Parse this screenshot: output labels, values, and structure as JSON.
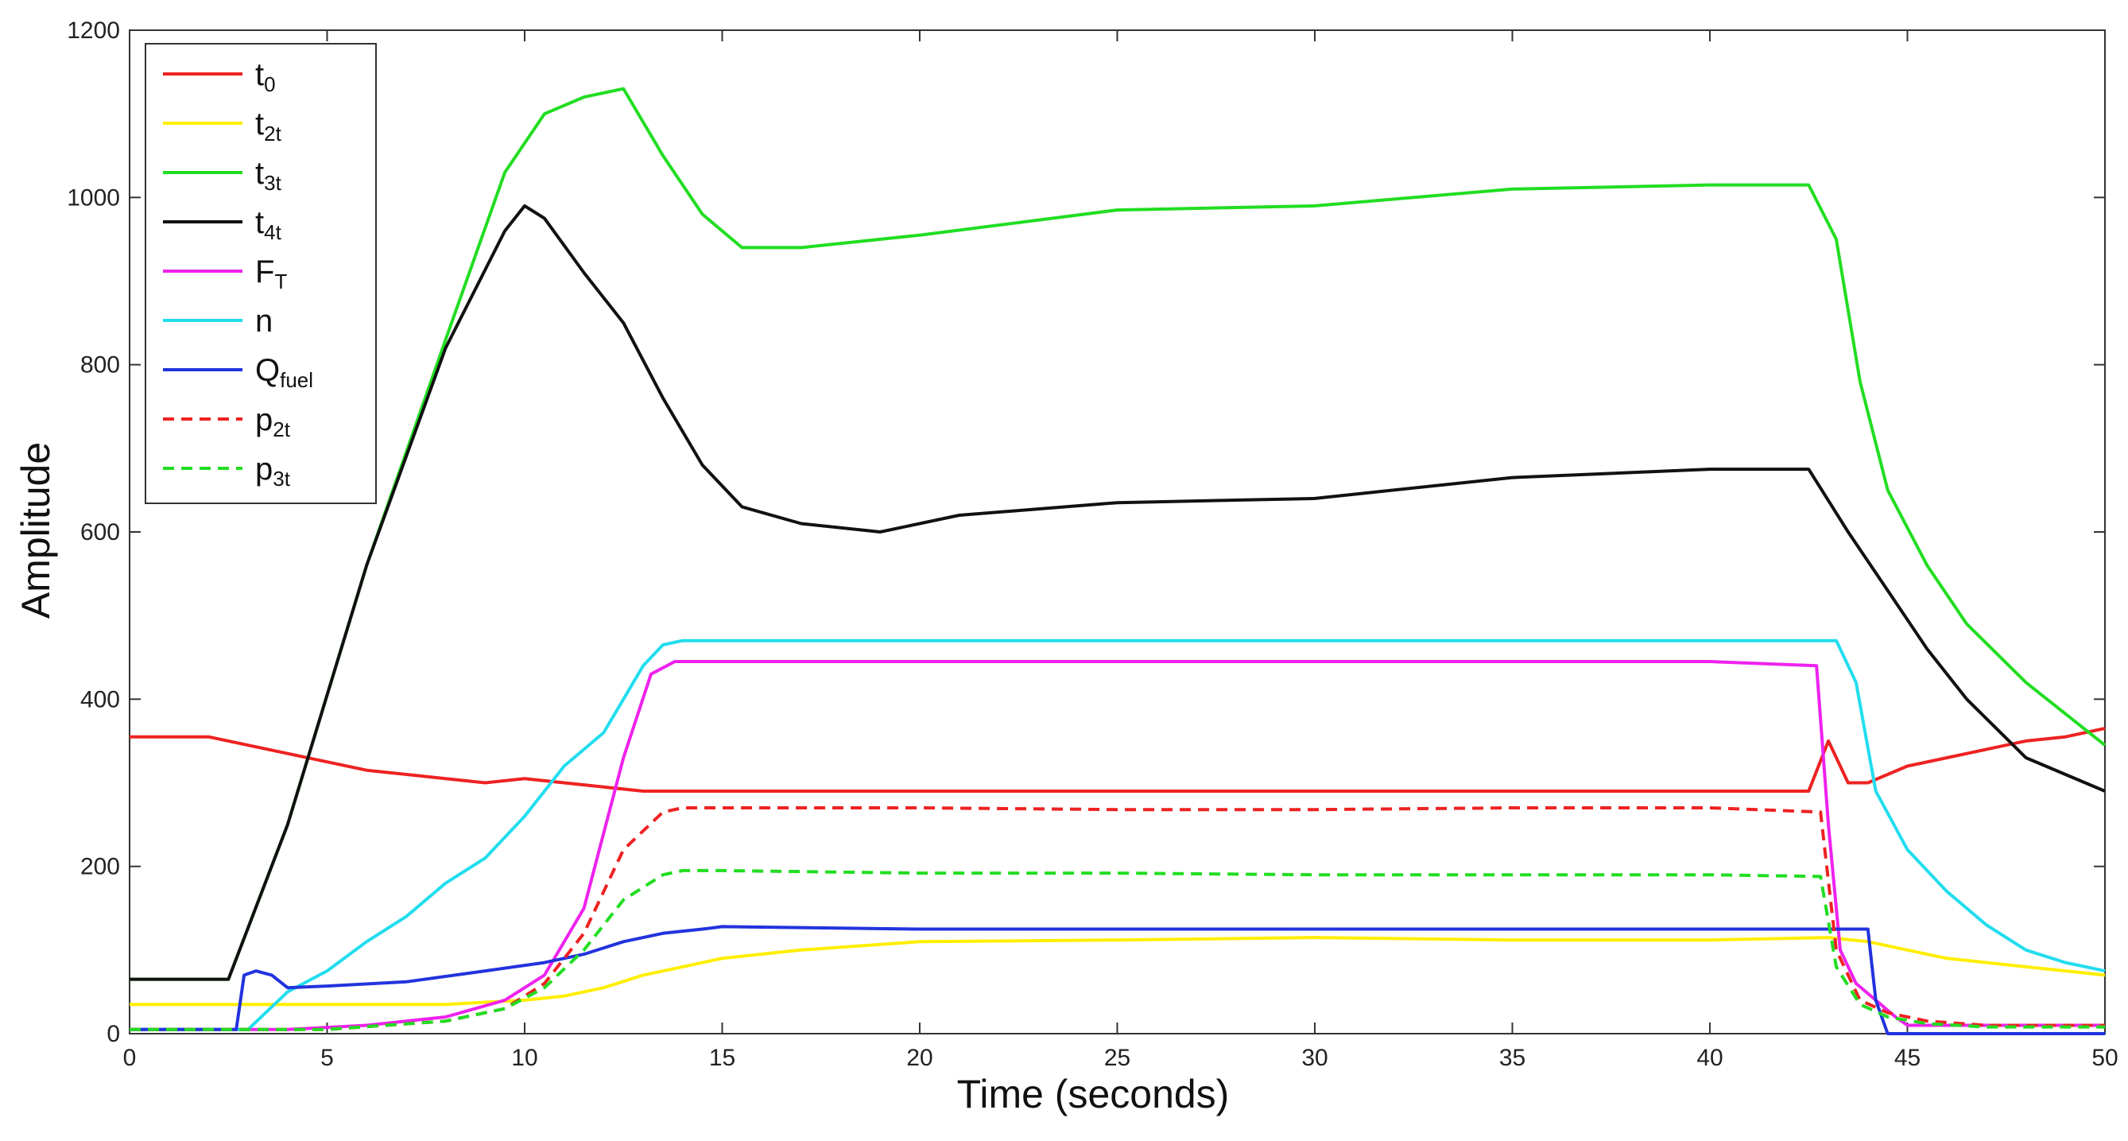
{
  "chart_data": {
    "type": "line",
    "xlabel": "Time (seconds)",
    "ylabel": "Amplitude",
    "xlim": [
      0,
      50
    ],
    "ylim": [
      0,
      1200
    ],
    "x_ticks": [
      "0",
      "5",
      "10",
      "15",
      "20",
      "25",
      "30",
      "35",
      "40",
      "45",
      "50"
    ],
    "y_ticks": [
      "0",
      "200",
      "400",
      "600",
      "800",
      "1000",
      "1200"
    ],
    "grid": false,
    "legend_position": "top-left",
    "series": [
      {
        "name": "t0",
        "label_main": "t",
        "label_sub": "0",
        "color": "#ee2222",
        "dash": "solid",
        "points": [
          [
            0,
            355
          ],
          [
            2,
            355
          ],
          [
            4,
            335
          ],
          [
            6,
            315
          ],
          [
            8,
            305
          ],
          [
            9,
            300
          ],
          [
            10,
            305
          ],
          [
            11,
            300
          ],
          [
            12,
            295
          ],
          [
            13,
            290
          ],
          [
            15,
            290
          ],
          [
            20,
            290
          ],
          [
            25,
            290
          ],
          [
            30,
            290
          ],
          [
            35,
            290
          ],
          [
            40,
            290
          ],
          [
            42.5,
            290
          ],
          [
            43,
            350
          ],
          [
            43.5,
            300
          ],
          [
            44,
            300
          ],
          [
            45,
            320
          ],
          [
            46,
            330
          ],
          [
            47,
            340
          ],
          [
            48,
            350
          ],
          [
            49,
            355
          ],
          [
            50,
            365
          ]
        ]
      },
      {
        "name": "t2t",
        "label_main": "t",
        "label_sub": "2t",
        "color": "#ffee00",
        "dash": "solid",
        "points": [
          [
            0,
            35
          ],
          [
            5,
            35
          ],
          [
            8,
            35
          ],
          [
            10,
            40
          ],
          [
            11,
            45
          ],
          [
            12,
            55
          ],
          [
            13,
            70
          ],
          [
            14,
            80
          ],
          [
            15,
            90
          ],
          [
            17,
            100
          ],
          [
            20,
            110
          ],
          [
            25,
            112
          ],
          [
            30,
            115
          ],
          [
            35,
            112
          ],
          [
            40,
            112
          ],
          [
            43,
            115
          ],
          [
            44,
            110
          ],
          [
            45,
            100
          ],
          [
            46,
            90
          ],
          [
            48,
            80
          ],
          [
            50,
            70
          ]
        ]
      },
      {
        "name": "t3t",
        "label_main": "t",
        "label_sub": "3t",
        "color": "#22dd22",
        "dash": "solid",
        "points": [
          [
            0,
            65
          ],
          [
            2.5,
            65
          ],
          [
            4,
            250
          ],
          [
            6,
            560
          ],
          [
            8,
            830
          ],
          [
            9.5,
            1030
          ],
          [
            10.5,
            1100
          ],
          [
            11.5,
            1120
          ],
          [
            12.5,
            1130
          ],
          [
            13.5,
            1050
          ],
          [
            14.5,
            980
          ],
          [
            15.5,
            940
          ],
          [
            17,
            940
          ],
          [
            20,
            955
          ],
          [
            25,
            985
          ],
          [
            30,
            990
          ],
          [
            35,
            1010
          ],
          [
            40,
            1015
          ],
          [
            42.5,
            1015
          ],
          [
            43.2,
            950
          ],
          [
            43.8,
            780
          ],
          [
            44.5,
            650
          ],
          [
            45.5,
            560
          ],
          [
            46.5,
            490
          ],
          [
            48,
            420
          ],
          [
            50,
            345
          ]
        ]
      },
      {
        "name": "t4t",
        "label_main": "t",
        "label_sub": "4t",
        "color": "#111111",
        "dash": "solid",
        "points": [
          [
            0,
            65
          ],
          [
            2.5,
            65
          ],
          [
            4,
            250
          ],
          [
            6,
            560
          ],
          [
            8,
            820
          ],
          [
            9.5,
            960
          ],
          [
            10,
            990
          ],
          [
            10.5,
            975
          ],
          [
            11.5,
            910
          ],
          [
            12.5,
            850
          ],
          [
            13.5,
            760
          ],
          [
            14.5,
            680
          ],
          [
            15.5,
            630
          ],
          [
            17,
            610
          ],
          [
            19,
            600
          ],
          [
            21,
            620
          ],
          [
            25,
            635
          ],
          [
            30,
            640
          ],
          [
            35,
            665
          ],
          [
            40,
            675
          ],
          [
            42.5,
            675
          ],
          [
            43.5,
            600
          ],
          [
            44.5,
            530
          ],
          [
            45.5,
            460
          ],
          [
            46.5,
            400
          ],
          [
            48,
            330
          ],
          [
            50,
            290
          ]
        ]
      },
      {
        "name": "FT",
        "label_main": "F",
        "label_sub": "T",
        "color": "#ee22ee",
        "dash": "solid",
        "points": [
          [
            0,
            5
          ],
          [
            4,
            5
          ],
          [
            6,
            10
          ],
          [
            8,
            20
          ],
          [
            9.5,
            40
          ],
          [
            10.5,
            70
          ],
          [
            11.5,
            150
          ],
          [
            12.5,
            330
          ],
          [
            13.2,
            430
          ],
          [
            13.8,
            445
          ],
          [
            15,
            445
          ],
          [
            20,
            445
          ],
          [
            25,
            445
          ],
          [
            30,
            445
          ],
          [
            35,
            445
          ],
          [
            40,
            445
          ],
          [
            42.7,
            440
          ],
          [
            43,
            250
          ],
          [
            43.3,
            100
          ],
          [
            43.7,
            60
          ],
          [
            44.2,
            40
          ],
          [
            44.7,
            20
          ],
          [
            45,
            10
          ],
          [
            50,
            10
          ]
        ]
      },
      {
        "name": "n",
        "label_main": "n",
        "label_sub": "",
        "color": "#22ddee",
        "dash": "solid",
        "points": [
          [
            0,
            5
          ],
          [
            3,
            5
          ],
          [
            4,
            50
          ],
          [
            5,
            75
          ],
          [
            6,
            110
          ],
          [
            7,
            140
          ],
          [
            8,
            180
          ],
          [
            9,
            210
          ],
          [
            10,
            260
          ],
          [
            11,
            320
          ],
          [
            12,
            360
          ],
          [
            12.5,
            400
          ],
          [
            13,
            440
          ],
          [
            13.5,
            465
          ],
          [
            14,
            470
          ],
          [
            15,
            470
          ],
          [
            20,
            470
          ],
          [
            25,
            470
          ],
          [
            30,
            470
          ],
          [
            35,
            470
          ],
          [
            40,
            470
          ],
          [
            43.2,
            470
          ],
          [
            43.7,
            420
          ],
          [
            44.2,
            290
          ],
          [
            45,
            220
          ],
          [
            46,
            170
          ],
          [
            47,
            130
          ],
          [
            48,
            100
          ],
          [
            49,
            85
          ],
          [
            50,
            75
          ]
        ]
      },
      {
        "name": "Qfuel",
        "label_main": "Q",
        "label_sub": "fuel",
        "color": "#2233dd",
        "dash": "solid",
        "points": [
          [
            0,
            5
          ],
          [
            2.7,
            5
          ],
          [
            2.9,
            70
          ],
          [
            3.2,
            75
          ],
          [
            3.6,
            70
          ],
          [
            4,
            55
          ],
          [
            5,
            57
          ],
          [
            7,
            62
          ],
          [
            9,
            75
          ],
          [
            10.5,
            85
          ],
          [
            11.5,
            95
          ],
          [
            12.5,
            110
          ],
          [
            13.5,
            120
          ],
          [
            14.5,
            125
          ],
          [
            15,
            128
          ],
          [
            20,
            125
          ],
          [
            25,
            125
          ],
          [
            30,
            125
          ],
          [
            35,
            125
          ],
          [
            40,
            125
          ],
          [
            43,
            125
          ],
          [
            44,
            125
          ],
          [
            44.2,
            40
          ],
          [
            44.5,
            0
          ],
          [
            50,
            0
          ]
        ]
      },
      {
        "name": "p2t",
        "label_main": "p",
        "label_sub": "2t",
        "color": "#ee2222",
        "dash": "dashed",
        "points": [
          [
            0,
            5
          ],
          [
            5,
            5
          ],
          [
            8,
            15
          ],
          [
            9.5,
            30
          ],
          [
            10.5,
            60
          ],
          [
            11.5,
            120
          ],
          [
            12.5,
            220
          ],
          [
            13.5,
            265
          ],
          [
            14,
            270
          ],
          [
            15,
            270
          ],
          [
            20,
            270
          ],
          [
            25,
            268
          ],
          [
            30,
            268
          ],
          [
            35,
            270
          ],
          [
            40,
            270
          ],
          [
            42.8,
            265
          ],
          [
            43.2,
            100
          ],
          [
            43.8,
            40
          ],
          [
            44.5,
            25
          ],
          [
            45.5,
            15
          ],
          [
            47,
            10
          ],
          [
            50,
            10
          ]
        ]
      },
      {
        "name": "p3t",
        "label_main": "p",
        "label_sub": "3t",
        "color": "#22dd22",
        "dash": "dashed",
        "points": [
          [
            0,
            5
          ],
          [
            5,
            5
          ],
          [
            8,
            15
          ],
          [
            9.5,
            30
          ],
          [
            10.5,
            55
          ],
          [
            11.5,
            100
          ],
          [
            12.5,
            160
          ],
          [
            13.5,
            190
          ],
          [
            14,
            195
          ],
          [
            15,
            195
          ],
          [
            20,
            192
          ],
          [
            25,
            192
          ],
          [
            30,
            190
          ],
          [
            35,
            190
          ],
          [
            40,
            190
          ],
          [
            42.8,
            188
          ],
          [
            43.2,
            80
          ],
          [
            43.8,
            35
          ],
          [
            44.5,
            20
          ],
          [
            45.5,
            12
          ],
          [
            47,
            8
          ],
          [
            50,
            8
          ]
        ]
      }
    ]
  }
}
